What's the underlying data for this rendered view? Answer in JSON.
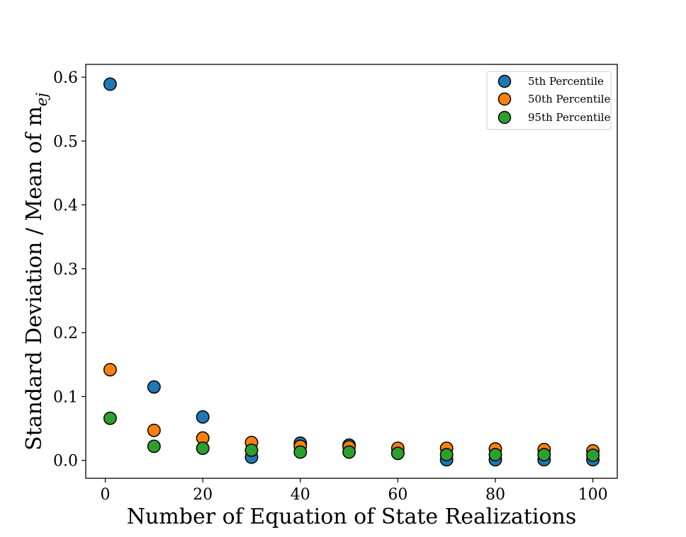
{
  "chart_data": {
    "type": "scatter",
    "title": "",
    "xlabel": "Number of Equation of State Realizations",
    "ylabel_main": "Standard Deviation / Mean of m",
    "ylabel_sub": "ej",
    "xlim": [
      -4,
      105
    ],
    "ylim": [
      -0.028,
      0.62
    ],
    "xticks": [
      0,
      20,
      40,
      60,
      80,
      100
    ],
    "xtick_labels": [
      "0",
      "20",
      "40",
      "60",
      "80",
      "100"
    ],
    "yticks": [
      0.0,
      0.1,
      0.2,
      0.3,
      0.4,
      0.5,
      0.6
    ],
    "ytick_labels": [
      "0.0",
      "0.1",
      "0.2",
      "0.3",
      "0.4",
      "0.5",
      "0.6"
    ],
    "grid": false,
    "legend_position": "top-right",
    "x": [
      1,
      10,
      20,
      30,
      40,
      50,
      60,
      70,
      80,
      90,
      100
    ],
    "series": [
      {
        "name": "5th Percentile",
        "color": "#1f77b4",
        "values": [
          0.589,
          0.115,
          0.068,
          0.005,
          0.027,
          0.024,
          0.012,
          0.001,
          0.001,
          0.001,
          0.001
        ]
      },
      {
        "name": "50th Percentile",
        "color": "#ff7f0e",
        "values": [
          0.142,
          0.047,
          0.035,
          0.028,
          0.022,
          0.021,
          0.019,
          0.019,
          0.018,
          0.017,
          0.015
        ]
      },
      {
        "name": "95th Percentile",
        "color": "#2ca02c",
        "values": [
          0.066,
          0.022,
          0.019,
          0.016,
          0.013,
          0.013,
          0.011,
          0.009,
          0.009,
          0.009,
          0.008
        ]
      }
    ]
  }
}
